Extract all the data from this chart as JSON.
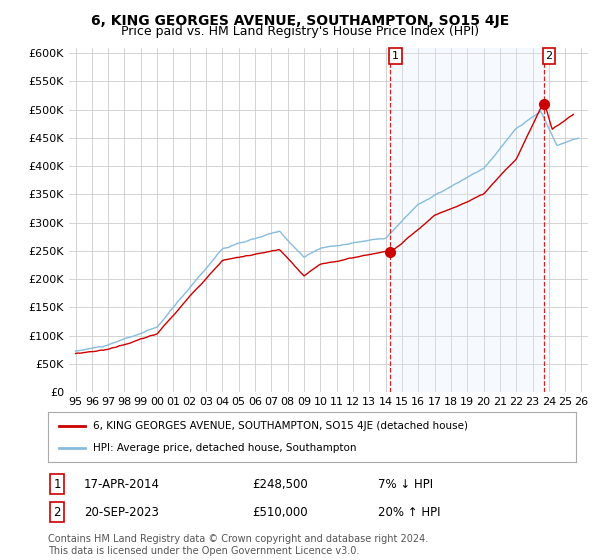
{
  "title": "6, KING GEORGES AVENUE, SOUTHAMPTON, SO15 4JE",
  "subtitle": "Price paid vs. HM Land Registry's House Price Index (HPI)",
  "ylabel_ticks": [
    "£0",
    "£50K",
    "£100K",
    "£150K",
    "£200K",
    "£250K",
    "£300K",
    "£350K",
    "£400K",
    "£450K",
    "£500K",
    "£550K",
    "£600K"
  ],
  "ytick_values": [
    0,
    50000,
    100000,
    150000,
    200000,
    250000,
    300000,
    350000,
    400000,
    450000,
    500000,
    550000,
    600000
  ],
  "ylim": [
    0,
    610000
  ],
  "xlim_start": 1994.6,
  "xlim_end": 2026.4,
  "sale1_x": 2014.29,
  "sale1_y": 248500,
  "sale1_label": "1",
  "sale2_x": 2023.72,
  "sale2_y": 510000,
  "sale2_label": "2",
  "vline1_x": 2014.29,
  "vline2_x": 2023.72,
  "red_line_color": "#cc0000",
  "blue_line_color": "#88bbdd",
  "shade_color": "#ddeeff",
  "vline_color": "#cc0000",
  "grid_color": "#cccccc",
  "background_color": "#ffffff",
  "legend_label1": "6, KING GEORGES AVENUE, SOUTHAMPTON, SO15 4JE (detached house)",
  "legend_label2": "HPI: Average price, detached house, Southampton",
  "annotation1_date": "17-APR-2014",
  "annotation1_price": "£248,500",
  "annotation1_hpi": "7% ↓ HPI",
  "annotation2_date": "20-SEP-2023",
  "annotation2_price": "£510,000",
  "annotation2_hpi": "20% ↑ HPI",
  "footer": "Contains HM Land Registry data © Crown copyright and database right 2024.\nThis data is licensed under the Open Government Licence v3.0.",
  "title_fontsize": 10,
  "subtitle_fontsize": 9,
  "tick_fontsize": 8,
  "annotation_fontsize": 8.5
}
